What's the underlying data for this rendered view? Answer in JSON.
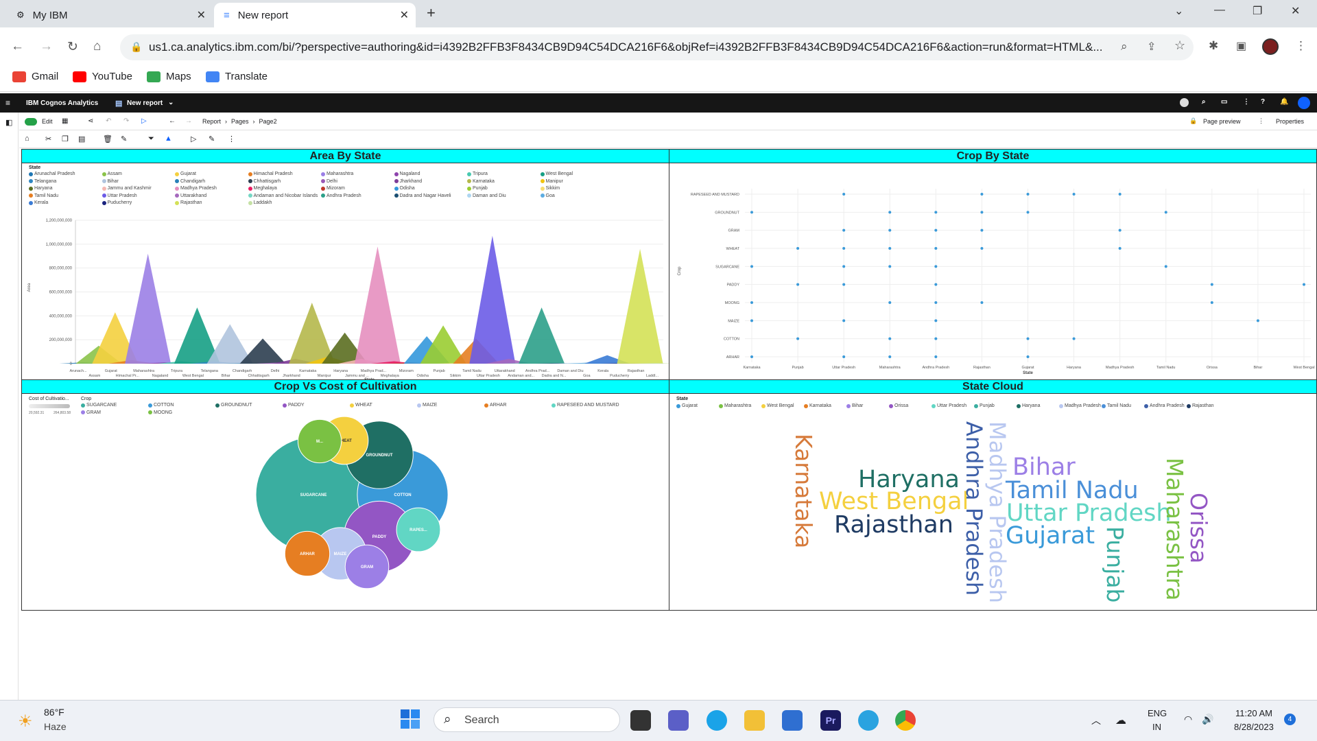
{
  "browser": {
    "tabs": [
      {
        "label": "My IBM"
      },
      {
        "label": "New report"
      }
    ],
    "url": "us1.ca.analytics.ibm.com/bi/?perspective=authoring&id=i4392B2FFB3F8434CB9D94C54DCA216F6&objRef=i4392B2FFB3F8434CB9D94C54DCA216F6&action=run&format=HTML&...",
    "bookmarks": [
      "Gmail",
      "YouTube",
      "Maps",
      "Translate"
    ]
  },
  "cognos": {
    "brand": "IBM Cognos Analytics",
    "report_label": "New report",
    "edit_label": "Edit",
    "breadcrumb": [
      "Report",
      "Pages",
      "Page2"
    ],
    "page_preview": "Page preview",
    "properties": "Properties"
  },
  "area_chart": {
    "title": "Area By State",
    "legend_title": "State",
    "ylabel": "Area",
    "xlabel": "State",
    "yticks": [
      "1,200,000,000",
      "1,000,000,000",
      "800,000,000",
      "600,000,000",
      "400,000,000",
      "200,000,000",
      "0"
    ],
    "legend": [
      {
        "name": "Arunachal Pradesh",
        "color": "#1f77b4"
      },
      {
        "name": "Assam",
        "color": "#8bc34a"
      },
      {
        "name": "Gujarat",
        "color": "#f4d03f"
      },
      {
        "name": "Himachal Pradesh",
        "color": "#e67e22"
      },
      {
        "name": "Maharashtra",
        "color": "#9b7fe6"
      },
      {
        "name": "Nagaland",
        "color": "#8e44ad"
      },
      {
        "name": "Tripura",
        "color": "#48c9b0"
      },
      {
        "name": "West Bengal",
        "color": "#16a085"
      },
      {
        "name": "Telangana",
        "color": "#2e86c1"
      },
      {
        "name": "Bihar",
        "color": "#b0c4de"
      },
      {
        "name": "Chandigarh",
        "color": "#2980b9"
      },
      {
        "name": "Chhattisgarh",
        "color": "#2c3e50"
      },
      {
        "name": "Delhi",
        "color": "#9b59b6"
      },
      {
        "name": "Jharkhand",
        "color": "#7d3c98"
      },
      {
        "name": "Karnataka",
        "color": "#b5b84b"
      },
      {
        "name": "Manipur",
        "color": "#f1c40f"
      },
      {
        "name": "Haryana",
        "color": "#5b6e20"
      },
      {
        "name": "Jammu and Kashmir",
        "color": "#f5b7b1"
      },
      {
        "name": "Madhya Pradesh",
        "color": "#e58fbf"
      },
      {
        "name": "Meghalaya",
        "color": "#e91e63"
      },
      {
        "name": "Mizoram",
        "color": "#c0392b"
      },
      {
        "name": "Odisha",
        "color": "#3498db"
      },
      {
        "name": "Punjab",
        "color": "#9acd32"
      },
      {
        "name": "Sikkim",
        "color": "#f7dc6f"
      },
      {
        "name": "Tamil Nadu",
        "color": "#e67e22"
      },
      {
        "name": "Uttar Pradesh",
        "color": "#6c5ce7"
      },
      {
        "name": "Uttarakhand",
        "color": "#a569bd"
      },
      {
        "name": "Andaman and Nicobar Islands",
        "color": "#76d7c4"
      },
      {
        "name": "Andhra Pradesh",
        "color": "#2ca089"
      },
      {
        "name": "Dadra and Nagar Haveli",
        "color": "#1b4f72"
      },
      {
        "name": "Daman and Diu",
        "color": "#aed6f1"
      },
      {
        "name": "Goa",
        "color": "#5dade2"
      },
      {
        "name": "Kerala",
        "color": "#3a7bd5"
      },
      {
        "name": "Puducherry",
        "color": "#1a237e"
      },
      {
        "name": "Rajasthan",
        "color": "#d4e157"
      },
      {
        "name": "Laddakh",
        "color": "#c5e1a5"
      }
    ],
    "xlabels_top": [
      "Arunach...",
      "Gujarat",
      "Maharashtra",
      "Tripura",
      "Telangana",
      "Chandigarh",
      "Delhi",
      "Karnataka",
      "Haryana",
      "Madhya Prad...",
      "Mizoram",
      "Punjab",
      "Tamil Nadu",
      "Uttarakhand",
      "Andhra Prad...",
      "Daman and Diu",
      "Kerala",
      "Rajasthan"
    ],
    "xlabels_bottom": [
      "Assam",
      "Himachal Pr...",
      "Nagaland",
      "West Bengal",
      "Bihar",
      "Chhattisgarh",
      "Jharkhand",
      "Manipur",
      "Jammu and ...",
      "Meghalaya",
      "Odisha",
      "Sikkim",
      "Uttar Pradesh",
      "Andaman and...",
      "Dadra and N...",
      "Goa",
      "Puducherry",
      "Laddl..."
    ]
  },
  "chart_data": [
    {
      "type": "area",
      "title": "Area By State",
      "xlabel": "State",
      "ylabel": "Area",
      "ylim": [
        0,
        1200000000
      ],
      "categories": [
        "Arunachal Pradesh",
        "Assam",
        "Gujarat",
        "Himachal Pradesh",
        "Maharashtra",
        "Nagaland",
        "Tripura",
        "West Bengal",
        "Telangana",
        "Bihar",
        "Chandigarh",
        "Chhattisgarh",
        "Delhi",
        "Jharkhand",
        "Karnataka",
        "Manipur",
        "Haryana",
        "Jammu and Kashmir",
        "Madhya Pradesh",
        "Meghalaya",
        "Mizoram",
        "Odisha",
        "Punjab",
        "Sikkim",
        "Tamil Nadu",
        "Uttar Pradesh",
        "Uttarakhand",
        "Andaman and Nicobar Islands",
        "Andhra Pradesh",
        "Dadra and Nagar Haveli",
        "Daman and Diu",
        "Goa",
        "Kerala",
        "Puducherry",
        "Rajasthan",
        "Laddakh"
      ],
      "values": [
        10000000,
        150000000,
        430000000,
        30000000,
        920000000,
        10000000,
        20000000,
        470000000,
        20000000,
        330000000,
        5000000,
        210000000,
        10000000,
        40000000,
        510000000,
        60000000,
        260000000,
        40000000,
        980000000,
        20000000,
        10000000,
        230000000,
        320000000,
        5000000,
        210000000,
        1070000000,
        40000000,
        5000000,
        470000000,
        5000000,
        5000000,
        10000000,
        70000000,
        5000000,
        960000000,
        5000000
      ]
    },
    {
      "type": "scatter",
      "title": "Crop By State",
      "xlabel": "State",
      "ylabel": "Crop",
      "states": [
        "Karnataka",
        "Punjab",
        "Uttar Pradesh",
        "Maharashtra",
        "Andhra Pradesh",
        "Rajasthan",
        "Gujarat",
        "Haryana",
        "Madhya Pradesh",
        "Tamil Nadu",
        "Orissa",
        "Bihar",
        "West Bengal"
      ],
      "crops": [
        "RAPESEED AND MUSTARD",
        "GROUNDNUT",
        "GRAM",
        "WHEAT",
        "SUGARCANE",
        "PADDY",
        "MOONG",
        "MAIZE",
        "COTTON",
        "ARHAR"
      ],
      "points": [
        [
          "Uttar Pradesh",
          "RAPESEED AND MUSTARD"
        ],
        [
          "Rajasthan",
          "RAPESEED AND MUSTARD"
        ],
        [
          "Gujarat",
          "RAPESEED AND MUSTARD"
        ],
        [
          "Haryana",
          "RAPESEED AND MUSTARD"
        ],
        [
          "Madhya Pradesh",
          "RAPESEED AND MUSTARD"
        ],
        [
          "Karnataka",
          "GROUNDNUT"
        ],
        [
          "Maharashtra",
          "GROUNDNUT"
        ],
        [
          "Andhra Pradesh",
          "GROUNDNUT"
        ],
        [
          "Rajasthan",
          "GROUNDNUT"
        ],
        [
          "Gujarat",
          "GROUNDNUT"
        ],
        [
          "Tamil Nadu",
          "GROUNDNUT"
        ],
        [
          "Uttar Pradesh",
          "GRAM"
        ],
        [
          "Maharashtra",
          "GRAM"
        ],
        [
          "Andhra Pradesh",
          "GRAM"
        ],
        [
          "Rajasthan",
          "GRAM"
        ],
        [
          "Madhya Pradesh",
          "GRAM"
        ],
        [
          "Punjab",
          "WHEAT"
        ],
        [
          "Uttar Pradesh",
          "WHEAT"
        ],
        [
          "Maharashtra",
          "WHEAT"
        ],
        [
          "Andhra Pradesh",
          "WHEAT"
        ],
        [
          "Rajasthan",
          "WHEAT"
        ],
        [
          "Madhya Pradesh",
          "WHEAT"
        ],
        [
          "Karnataka",
          "SUGARCANE"
        ],
        [
          "Uttar Pradesh",
          "SUGARCANE"
        ],
        [
          "Maharashtra",
          "SUGARCANE"
        ],
        [
          "Andhra Pradesh",
          "SUGARCANE"
        ],
        [
          "Tamil Nadu",
          "SUGARCANE"
        ],
        [
          "Punjab",
          "PADDY"
        ],
        [
          "Uttar Pradesh",
          "PADDY"
        ],
        [
          "Andhra Pradesh",
          "PADDY"
        ],
        [
          "Orissa",
          "PADDY"
        ],
        [
          "West Bengal",
          "PADDY"
        ],
        [
          "Karnataka",
          "MOONG"
        ],
        [
          "Maharashtra",
          "MOONG"
        ],
        [
          "Andhra Pradesh",
          "MOONG"
        ],
        [
          "Rajasthan",
          "MOONG"
        ],
        [
          "Orissa",
          "MOONG"
        ],
        [
          "Karnataka",
          "MAIZE"
        ],
        [
          "Uttar Pradesh",
          "MAIZE"
        ],
        [
          "Andhra Pradesh",
          "MAIZE"
        ],
        [
          "Bihar",
          "MAIZE"
        ],
        [
          "Punjab",
          "COTTON"
        ],
        [
          "Maharashtra",
          "COTTON"
        ],
        [
          "Andhra Pradesh",
          "COTTON"
        ],
        [
          "Gujarat",
          "COTTON"
        ],
        [
          "Haryana",
          "COTTON"
        ],
        [
          "Karnataka",
          "ARHAR"
        ],
        [
          "Uttar Pradesh",
          "ARHAR"
        ],
        [
          "Maharashtra",
          "ARHAR"
        ],
        [
          "Andhra Pradesh",
          "ARHAR"
        ],
        [
          "Gujarat",
          "ARHAR"
        ]
      ]
    },
    {
      "type": "bubble",
      "title": "Crop Vs Cost of Cultivation",
      "legend_title": "Crop",
      "size_legend_title": "Cost of Cultivatio...",
      "size_range": [
        "20,592.31",
        "264,803.58"
      ],
      "bubbles": [
        {
          "name": "SUGARCANE",
          "label": "SUGARCANE",
          "value": 264803.58,
          "color": "#3aaea0"
        },
        {
          "name": "COTTON",
          "label": "COTTON",
          "value": 90000,
          "color": "#3a9ad9"
        },
        {
          "name": "GROUNDNUT",
          "label": "GROUNDNUT",
          "value": 50000,
          "color": "#1f6f64"
        },
        {
          "name": "PADDY",
          "label": "PADDY",
          "value": 55000,
          "color": "#9356c4"
        },
        {
          "name": "WHEAT",
          "label": "WHEAT",
          "value": 25000,
          "color": "#f4d03f"
        },
        {
          "name": "MAIZE",
          "label": "MAIZE",
          "value": 30000,
          "color": "#b8c7f0"
        },
        {
          "name": "ARHAR",
          "label": "ARHAR",
          "value": 22000,
          "color": "#e67e22"
        },
        {
          "name": "RAPESEED AND MUSTARD",
          "label": "RAPES...",
          "value": 21000,
          "color": "#61d6c4"
        },
        {
          "name": "GRAM",
          "label": "GRAM",
          "value": 20800,
          "color": "#9c7fe6"
        },
        {
          "name": "MOONG",
          "label": "M...",
          "value": 20592.31,
          "color": "#7ac143"
        }
      ]
    },
    {
      "type": "wordcloud",
      "title": "State Cloud",
      "legend_title": "State",
      "legend": [
        {
          "name": "Gujarat",
          "color": "#3a9ad9"
        },
        {
          "name": "Maharashtra",
          "color": "#7ac143"
        },
        {
          "name": "West Bengal",
          "color": "#f4d03f"
        },
        {
          "name": "Karnataka",
          "color": "#e67e22"
        },
        {
          "name": "Bihar",
          "color": "#9c7fe6"
        },
        {
          "name": "Orissa",
          "color": "#9356c4"
        },
        {
          "name": "Uttar Pradesh",
          "color": "#61d6c4"
        },
        {
          "name": "Punjab",
          "color": "#3aaea0"
        },
        {
          "name": "Haryana",
          "color": "#1f6f64"
        },
        {
          "name": "Madhya Pradesh",
          "color": "#b8c7f0"
        },
        {
          "name": "Tamil Nadu",
          "color": "#4a8fd8"
        },
        {
          "name": "Andhra Pradesh",
          "color": "#3d5fa8"
        },
        {
          "name": "Rajasthan",
          "color": "#1f3b63"
        }
      ]
    }
  ],
  "cloud_words": [
    {
      "text": "Karnataka",
      "color": "#d67a3a"
    },
    {
      "text": "Haryana",
      "color": "#1f6f64"
    },
    {
      "text": "West Bengal",
      "color": "#f4d03f"
    },
    {
      "text": "Rajasthan",
      "color": "#1f3b63"
    },
    {
      "text": "Andhra Pradesh",
      "color": "#3d5fa8"
    },
    {
      "text": "Madhya Pradesh",
      "color": "#b8c7f0"
    },
    {
      "text": "Bihar",
      "color": "#9c7fe6"
    },
    {
      "text": "Tamil Nadu",
      "color": "#4a8fd8"
    },
    {
      "text": "Uttar Pradesh",
      "color": "#61d6c4"
    },
    {
      "text": "Gujarat",
      "color": "#3a9ad9"
    },
    {
      "text": "Punjab",
      "color": "#3aaea0"
    },
    {
      "text": "Maharashtra",
      "color": "#7ac143"
    },
    {
      "text": "Orissa",
      "color": "#9356c4"
    }
  ],
  "taskbar": {
    "weather_temp": "86°F",
    "weather_desc": "Haze",
    "search": "Search",
    "lang1": "ENG",
    "lang2": "IN",
    "time": "11:20 AM",
    "date": "8/28/2023",
    "badge": "4"
  }
}
